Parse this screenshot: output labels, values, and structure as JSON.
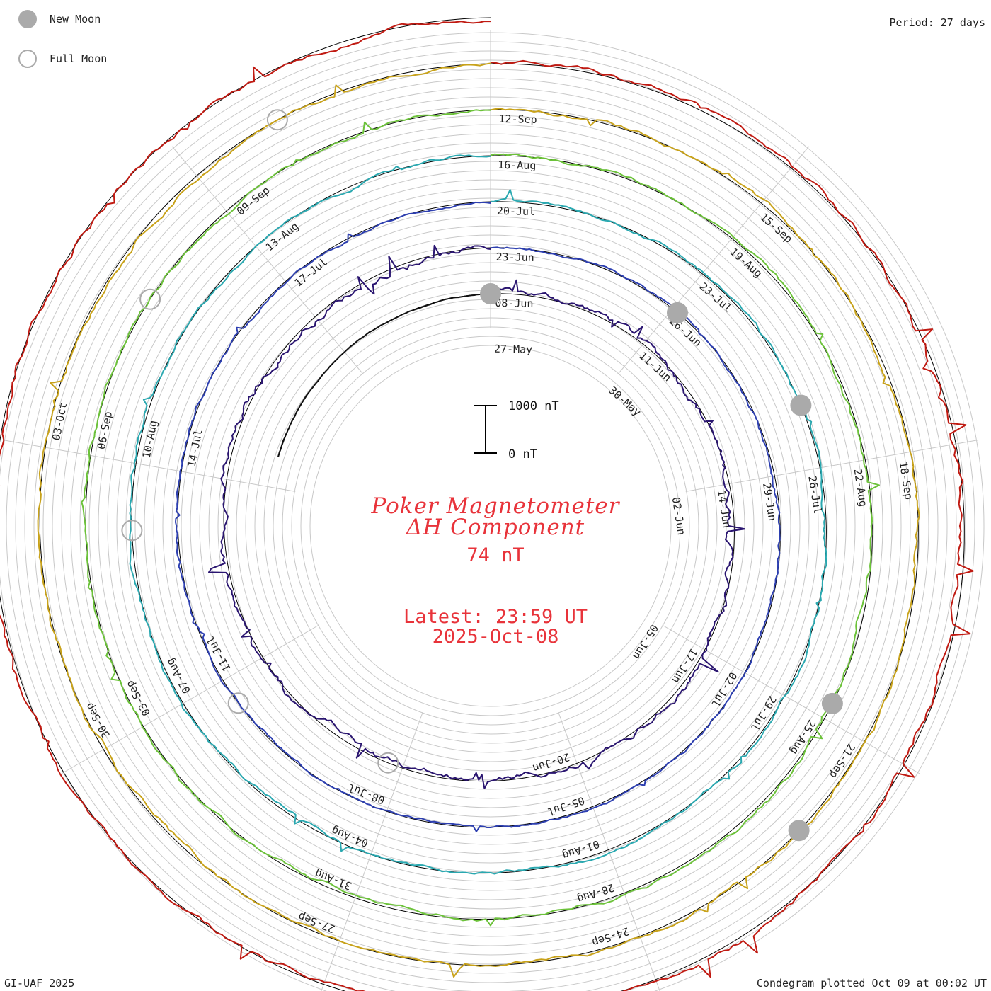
{
  "legend": {
    "new_moon_label": "New Moon",
    "full_moon_label": "Full Moon"
  },
  "header": {
    "period_label": "Period: 27 days"
  },
  "title": {
    "line1": "Poker Magnetometer",
    "line2": "ΔH Component",
    "value": "74 nT"
  },
  "latest": {
    "line1": "Latest: 23:59 UT",
    "line2": "2025-Oct-08"
  },
  "scale_bar": {
    "top_label": "1000 nT",
    "bottom_label": "0 nT"
  },
  "footer": {
    "left": "GI-UAF 2025",
    "right": "Condegram plotted Oct 09 at 00:02 UT"
  },
  "chart_data": {
    "type": "condegram",
    "title": "Poker Magnetometer ΔH Component",
    "current_value_nT": 74,
    "period_days": 27,
    "scale_nT": [
      0,
      1000
    ],
    "rotations": [
      {
        "color": "#111111",
        "labels": [
          "27-May",
          "30-May",
          "02-Jun",
          "05-Jun"
        ],
        "activity": 0.15
      },
      {
        "color": "#2a1570",
        "labels": [
          "08-Jun",
          "11-Jun",
          "14-Jun",
          "17-Jun",
          "20-Jun"
        ],
        "activity": 1.0
      },
      {
        "color": "#2d3fb0",
        "labels": [
          "23-Jun",
          "26-Jun",
          "29-Jun",
          "02-Jul",
          "05-Jul",
          "08-Jul",
          "11-Jul",
          "14-Jul",
          "17-Jul"
        ],
        "activity": 0.45
      },
      {
        "color": "#2aa8b0",
        "labels": [
          "20-Jul",
          "23-Jul",
          "26-Jul",
          "29-Jul",
          "01-Aug",
          "04-Aug",
          "07-Aug",
          "10-Aug",
          "13-Aug"
        ],
        "activity": 0.55
      },
      {
        "color": "#6cc23a",
        "labels": [
          "16-Aug",
          "19-Aug",
          "22-Aug",
          "25-Aug",
          "28-Aug",
          "31-Aug",
          "03-Sep",
          "06-Sep",
          "09-Sep"
        ],
        "activity": 0.6
      },
      {
        "color": "#c8a21a",
        "labels": [
          "12-Sep",
          "15-Sep",
          "18-Sep",
          "21-Sep",
          "24-Sep",
          "27-Sep",
          "30-Sep",
          "03-Oct"
        ],
        "activity": 0.65
      },
      {
        "color": "#c01a12",
        "labels": [],
        "activity": 0.9
      }
    ],
    "new_moon_dates": [
      "25-May",
      "25-Jun",
      "24-Jul",
      "23-Aug",
      "21-Sep"
    ],
    "full_moon_dates": [
      "11-Jun",
      "10-Jul",
      "09-Aug",
      "07-Sep",
      "07-Oct"
    ]
  }
}
